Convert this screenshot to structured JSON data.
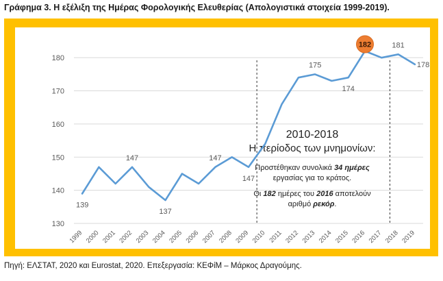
{
  "title": "Γράφημα 3. Η εξέλιξη της Ημέρας Φορολογικής Ελευθερίας (Απολογιστικά στοιχεία 1999-2019).",
  "source": "Πηγή: ΕΛΣΤΑΤ, 2020 και Eurostat, 2020. Επεξεργασία: ΚΕΦίΜ – Μάρκος Δραγούμης.",
  "colors": {
    "frame": "#ffc000",
    "line": "#5b9bd5",
    "highlight": "#ed7d31",
    "text": "#595959",
    "grid": "#d9d9d9"
  },
  "annotation": {
    "heading1": "2010-2018",
    "heading2": "Η περίοδος των μνημονίων:",
    "note1": {
      "a": "Προστέθηκαν συνολικά ",
      "b": "34 ημέρες",
      "c": "εργασίας για το κράτος."
    },
    "note2": {
      "a": "Οι ",
      "b": "182",
      "c": " ημέρες του ",
      "d": "2016",
      "e": " αποτελούν",
      "f": "αριθμό ",
      "g": "ρεκόρ",
      "h": "."
    }
  },
  "chart_data": {
    "type": "line",
    "x": [
      "1999",
      "2000",
      "2001",
      "2002",
      "2003",
      "2004",
      "2005",
      "2006",
      "2007",
      "2008",
      "2009",
      "2010",
      "2011",
      "2012",
      "2013",
      "2014",
      "2015",
      "2016",
      "2017",
      "2018",
      "2019"
    ],
    "series": [
      {
        "values": [
          139,
          147,
          142,
          147,
          141,
          137,
          145,
          142,
          147,
          150,
          147,
          154,
          166,
          174,
          175,
          173,
          174,
          182,
          180,
          181,
          178
        ]
      }
    ],
    "ylim": [
      130,
      185
    ],
    "yticks": [
      130,
      140,
      150,
      160,
      170,
      180
    ],
    "grid": true,
    "data_labels": [
      {
        "x": "1999",
        "text": "139",
        "pos": "below"
      },
      {
        "x": "2002",
        "text": "147",
        "pos": "above"
      },
      {
        "x": "2004",
        "text": "137",
        "pos": "below"
      },
      {
        "x": "2007",
        "text": "147",
        "pos": "above"
      },
      {
        "x": "2009",
        "text": "147",
        "pos": "below"
      },
      {
        "x": "2013",
        "text": "175",
        "pos": "above"
      },
      {
        "x": "2015",
        "text": "174",
        "pos": "below"
      },
      {
        "x": "2016",
        "text": "182",
        "pos": "highlight"
      },
      {
        "x": "2018",
        "text": "181",
        "pos": "above"
      },
      {
        "x": "2019",
        "text": "178",
        "pos": "right"
      }
    ],
    "vlines": [
      "2010",
      "2018"
    ]
  }
}
